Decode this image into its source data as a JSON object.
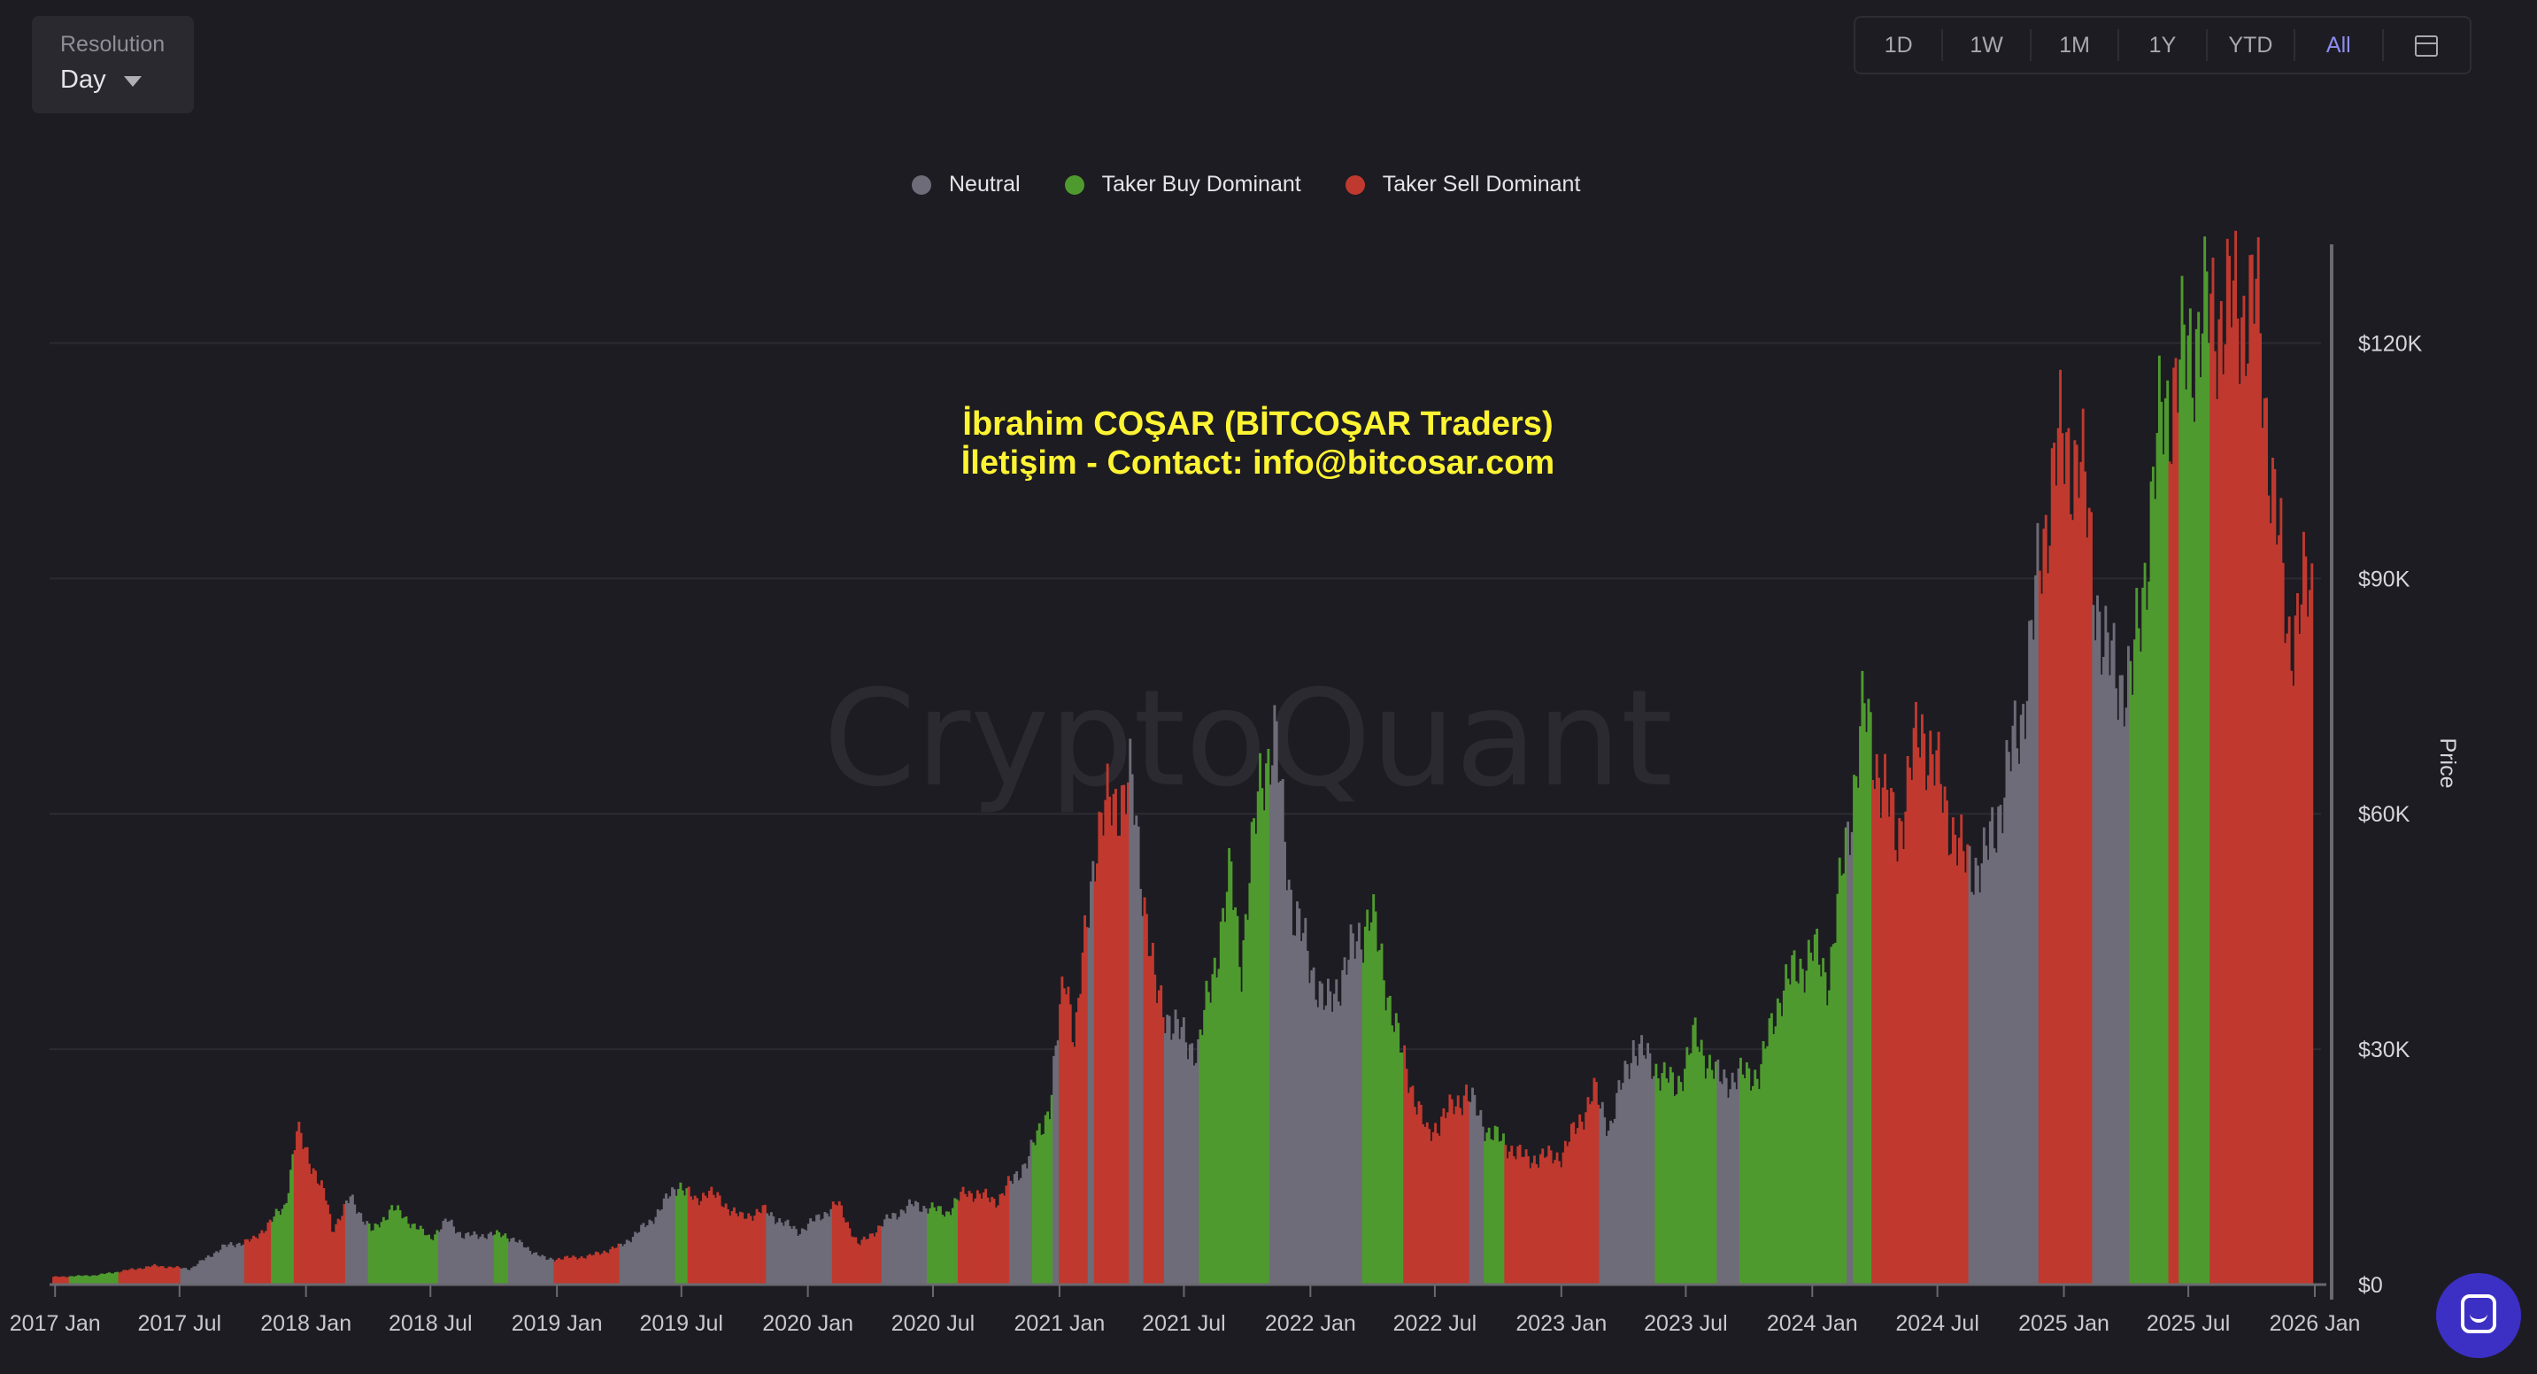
{
  "resolution": {
    "label": "Resolution",
    "value": "Day"
  },
  "range_buttons": [
    "1D",
    "1W",
    "1M",
    "1Y",
    "YTD",
    "All"
  ],
  "active_range": "All",
  "watermark": {
    "logo_text": "CryptoQuant",
    "line1": "İbrahim COŞAR (BİTCOŞAR Traders)",
    "line2": "İletişim - Contact: info@bitcosar.com"
  },
  "colors": {
    "neutral": "#6e6c78",
    "buy": "#4f9a2f",
    "sell": "#c0392f",
    "accent": "#8f8cf0",
    "watermark": "#fff433"
  },
  "chart_data": {
    "type": "area",
    "legend": [
      {
        "name": "Neutral",
        "color": "#6e6c78"
      },
      {
        "name": "Taker Buy Dominant",
        "color": "#4f9a2f"
      },
      {
        "name": "Taker Sell Dominant",
        "color": "#c0392f"
      }
    ],
    "legend_position": "top-center",
    "y_axis": {
      "label": "Price",
      "position": "right",
      "ticks": [
        "$0",
        "$30K",
        "$60K",
        "$90K",
        "$120K"
      ],
      "tick_values": [
        0,
        30000,
        60000,
        90000,
        120000
      ],
      "range": [
        0,
        131000
      ]
    },
    "x_axis": {
      "ticks": [
        "2017 Jan",
        "2017 Jul",
        "2018 Jan",
        "2018 Jul",
        "2019 Jan",
        "2019 Jul",
        "2020 Jan",
        "2020 Jul",
        "2021 Jan",
        "2021 Jul",
        "2022 Jan",
        "2022 Jul",
        "2023 Jan",
        "2023 Jul",
        "2024 Jan",
        "2024 Jul",
        "2025 Jan",
        "2025 Jul",
        "2026 Jan"
      ],
      "range": [
        "2016-12-24",
        "2026-01-10"
      ]
    },
    "grid": true,
    "price_points": [
      [
        "2016-12-28",
        970
      ],
      [
        "2017-03-01",
        1200
      ],
      [
        "2017-05-25",
        2400
      ],
      [
        "2017-07-15",
        2000
      ],
      [
        "2017-09-01",
        4800
      ],
      [
        "2017-10-15",
        5700
      ],
      [
        "2017-11-30",
        10000
      ],
      [
        "2017-12-17",
        19500
      ],
      [
        "2018-01-05",
        16000
      ],
      [
        "2018-01-30",
        10500
      ],
      [
        "2018-02-06",
        6900
      ],
      [
        "2018-03-05",
        11000
      ],
      [
        "2018-04-06",
        6700
      ],
      [
        "2018-05-05",
        9800
      ],
      [
        "2018-06-29",
        5900
      ],
      [
        "2018-07-25",
        8200
      ],
      [
        "2018-08-15",
        6200
      ],
      [
        "2018-10-15",
        6400
      ],
      [
        "2018-11-20",
        4500
      ],
      [
        "2018-12-15",
        3200
      ],
      [
        "2019-02-15",
        3600
      ],
      [
        "2019-04-02",
        4900
      ],
      [
        "2019-05-15",
        8000
      ],
      [
        "2019-06-26",
        12900
      ],
      [
        "2019-07-20",
        10500
      ],
      [
        "2019-08-06",
        12000
      ],
      [
        "2019-09-25",
        8500
      ],
      [
        "2019-10-26",
        9500
      ],
      [
        "2019-12-17",
        6700
      ],
      [
        "2020-02-12",
        10300
      ],
      [
        "2020-03-13",
        5000
      ],
      [
        "2020-04-30",
        8700
      ],
      [
        "2020-06-01",
        10200
      ],
      [
        "2020-07-20",
        9200
      ],
      [
        "2020-08-16",
        11900
      ],
      [
        "2020-10-01",
        10700
      ],
      [
        "2020-11-15",
        16000
      ],
      [
        "2020-12-17",
        23000
      ],
      [
        "2021-01-08",
        40500
      ],
      [
        "2021-01-22",
        31000
      ],
      [
        "2021-02-21",
        57000
      ],
      [
        "2021-03-13",
        61000
      ],
      [
        "2021-04-14",
        63500
      ],
      [
        "2021-05-19",
        37000
      ],
      [
        "2021-06-22",
        32000
      ],
      [
        "2021-07-20",
        29800
      ],
      [
        "2021-09-06",
        52000
      ],
      [
        "2021-09-21",
        41000
      ],
      [
        "2021-10-20",
        66000
      ],
      [
        "2021-11-10",
        68700
      ],
      [
        "2021-12-04",
        48000
      ],
      [
        "2022-01-22",
        35000
      ],
      [
        "2022-03-28",
        47500
      ],
      [
        "2022-05-10",
        30000
      ],
      [
        "2022-06-18",
        19000
      ],
      [
        "2022-08-14",
        24500
      ],
      [
        "2022-09-15",
        19500
      ],
      [
        "2022-11-09",
        16000
      ],
      [
        "2022-12-31",
        16500
      ],
      [
        "2023-02-16",
        24500
      ],
      [
        "2023-03-11",
        20000
      ],
      [
        "2023-04-14",
        30500
      ],
      [
        "2023-06-15",
        25000
      ],
      [
        "2023-07-13",
        31500
      ],
      [
        "2023-08-17",
        26000
      ],
      [
        "2023-10-15",
        27000
      ],
      [
        "2023-11-15",
        37500
      ],
      [
        "2023-12-31",
        42500
      ],
      [
        "2024-01-23",
        39000
      ],
      [
        "2024-03-14",
        73000
      ],
      [
        "2024-05-01",
        57000
      ],
      [
        "2024-06-06",
        71500
      ],
      [
        "2024-08-05",
        54000
      ],
      [
        "2024-09-06",
        53500
      ],
      [
        "2024-10-29",
        72000
      ],
      [
        "2024-12-17",
        106000
      ],
      [
        "2025-01-21",
        106000
      ],
      [
        "2025-02-28",
        80000
      ],
      [
        "2025-04-08",
        76000
      ],
      [
        "2025-05-22",
        111000
      ],
      [
        "2025-07-14",
        122000
      ],
      [
        "2025-08-14",
        124000
      ],
      [
        "2025-10-06",
        125000
      ],
      [
        "2025-11-21",
        82000
      ],
      [
        "2025-12-15",
        88000
      ],
      [
        "2025-12-28",
        87500
      ]
    ],
    "regimes": [
      [
        "2016-12-28",
        "sell"
      ],
      [
        "2017-01-20",
        "buy"
      ],
      [
        "2017-04-01",
        "sell"
      ],
      [
        "2017-07-01",
        "neutral"
      ],
      [
        "2017-10-01",
        "sell"
      ],
      [
        "2017-11-10",
        "buy"
      ],
      [
        "2017-12-14",
        "sell"
      ],
      [
        "2018-02-25",
        "neutral"
      ],
      [
        "2018-04-01",
        "buy"
      ],
      [
        "2018-07-10",
        "neutral"
      ],
      [
        "2018-10-01",
        "buy"
      ],
      [
        "2018-10-20",
        "neutral"
      ],
      [
        "2018-12-25",
        "sell"
      ],
      [
        "2019-04-01",
        "neutral"
      ],
      [
        "2019-06-20",
        "buy"
      ],
      [
        "2019-07-10",
        "sell"
      ],
      [
        "2019-11-01",
        "neutral"
      ],
      [
        "2020-02-05",
        "sell"
      ],
      [
        "2020-04-15",
        "neutral"
      ],
      [
        "2020-06-20",
        "buy"
      ],
      [
        "2020-08-05",
        "sell"
      ],
      [
        "2020-10-20",
        "neutral"
      ],
      [
        "2020-11-20",
        "buy"
      ],
      [
        "2020-12-20",
        "neutral"
      ],
      [
        "2020-12-29",
        "sell"
      ],
      [
        "2021-02-10",
        "neutral"
      ],
      [
        "2021-02-18",
        "sell"
      ],
      [
        "2021-04-12",
        "neutral"
      ],
      [
        "2021-05-01",
        "sell"
      ],
      [
        "2021-06-01",
        "neutral"
      ],
      [
        "2021-07-22",
        "buy"
      ],
      [
        "2021-11-01",
        "neutral"
      ],
      [
        "2022-03-15",
        "buy"
      ],
      [
        "2022-05-15",
        "sell"
      ],
      [
        "2022-08-20",
        "neutral"
      ],
      [
        "2022-09-10",
        "buy"
      ],
      [
        "2022-10-10",
        "sell"
      ],
      [
        "2023-02-25",
        "neutral"
      ],
      [
        "2023-05-15",
        "buy"
      ],
      [
        "2023-08-15",
        "neutral"
      ],
      [
        "2023-09-15",
        "buy"
      ],
      [
        "2024-02-20",
        "neutral"
      ],
      [
        "2024-02-27",
        "buy"
      ],
      [
        "2024-03-27",
        "sell"
      ],
      [
        "2024-08-15",
        "neutral"
      ],
      [
        "2024-11-25",
        "sell"
      ],
      [
        "2025-02-10",
        "neutral"
      ],
      [
        "2025-04-05",
        "buy"
      ],
      [
        "2025-06-01",
        "sell"
      ],
      [
        "2025-06-15",
        "buy"
      ],
      [
        "2025-08-01",
        "sell"
      ],
      [
        "2025-12-28",
        "end"
      ]
    ]
  }
}
